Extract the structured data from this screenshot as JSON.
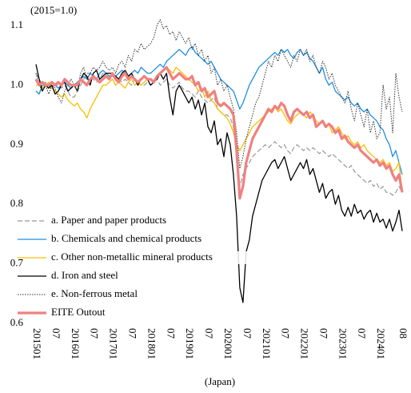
{
  "chart_data": {
    "type": "line",
    "annotations": [
      "(2015=1.0)"
    ],
    "x_label": "(Japan)",
    "categories": [
      "201501",
      null,
      null,
      null,
      null,
      null,
      "07",
      null,
      null,
      null,
      null,
      null,
      "201601",
      null,
      null,
      null,
      null,
      null,
      "07",
      null,
      null,
      null,
      null,
      null,
      "201701",
      null,
      null,
      null,
      null,
      null,
      "07",
      null,
      null,
      null,
      null,
      null,
      "201801",
      null,
      null,
      null,
      null,
      null,
      "07",
      null,
      null,
      null,
      null,
      null,
      "201901",
      null,
      null,
      null,
      null,
      null,
      "07",
      null,
      null,
      null,
      null,
      null,
      "202001",
      null,
      null,
      null,
      null,
      null,
      "07",
      null,
      null,
      null,
      null,
      null,
      "202101",
      null,
      null,
      null,
      null,
      null,
      "07",
      null,
      null,
      null,
      null,
      null,
      "202201",
      null,
      null,
      null,
      null,
      null,
      "07",
      null,
      null,
      null,
      null,
      null,
      "202301",
      null,
      null,
      null,
      null,
      null,
      "07",
      null,
      null,
      null,
      null,
      null,
      "202401",
      null,
      null,
      null,
      null,
      null,
      null,
      "08"
    ],
    "ylim": [
      0.6,
      1.1
    ],
    "yticks": [
      0.6,
      0.7,
      0.8,
      0.9,
      {
        "value": 1,
        "label": "1.0"
      },
      1.1
    ],
    "grid": false,
    "legend": "lower-left",
    "series": [
      {
        "name": "a. Paper and paper products",
        "color": "#999999",
        "line_style": "dashed",
        "linewidth": 1.2,
        "values": [
          1.02,
          1.01,
          1.0,
          1.005,
          1.0,
          0.995,
          1.0,
          1.0,
          0.995,
          1.0,
          0.99,
          0.98,
          0.98,
          0.99,
          1.0,
          1.01,
          1.02,
          1.02,
          1.01,
          1.005,
          1.01,
          1.02,
          1.02,
          1.015,
          1.015,
          1.01,
          1.01,
          1.005,
          1.01,
          1.005,
          1.0,
          1.01,
          1.005,
          1.0,
          1.0,
          1.005,
          1.0,
          1.005,
          1.01,
          1.0,
          1.005,
          1.01,
          1.0,
          0.995,
          1.0,
          1.005,
          0.995,
          0.99,
          0.99,
          0.985,
          0.98,
          0.99,
          0.98,
          0.975,
          0.97,
          0.975,
          0.98,
          0.96,
          0.955,
          0.95,
          0.95,
          0.945,
          0.93,
          0.88,
          0.83,
          0.85,
          0.86,
          0.87,
          0.88,
          0.885,
          0.89,
          0.895,
          0.9,
          0.895,
          0.9,
          0.905,
          0.9,
          0.895,
          0.9,
          0.89,
          0.885,
          0.895,
          0.9,
          0.895,
          0.89,
          0.895,
          0.89,
          0.895,
          0.89,
          0.885,
          0.89,
          0.885,
          0.88,
          0.885,
          0.88,
          0.875,
          0.87,
          0.865,
          0.86,
          0.865,
          0.855,
          0.85,
          0.845,
          0.84,
          0.835,
          0.84,
          0.83,
          0.835,
          0.825,
          0.83,
          0.82,
          0.82,
          0.815,
          0.82,
          0.83,
          0.82
        ]
      },
      {
        "name": "b. Chemicals and chemical products",
        "color": "#1f8fe0",
        "line_style": "solid",
        "linewidth": 1.3,
        "values": [
          0.99,
          0.985,
          1.0,
          1.0,
          0.995,
          1.005,
          1.0,
          0.995,
          1.0,
          1.005,
          1.0,
          0.995,
          1.0,
          1.005,
          1.01,
          1.015,
          1.01,
          1.02,
          1.015,
          1.01,
          1.02,
          1.025,
          1.02,
          1.015,
          1.02,
          1.015,
          1.02,
          1.025,
          1.02,
          1.015,
          1.02,
          1.025,
          1.02,
          1.03,
          1.025,
          1.02,
          1.02,
          1.025,
          1.03,
          1.035,
          1.03,
          1.04,
          1.045,
          1.05,
          1.055,
          1.06,
          1.055,
          1.05,
          1.06,
          1.065,
          1.055,
          1.05,
          1.045,
          1.04,
          1.035,
          1.04,
          1.03,
          1.02,
          1.01,
          1.005,
          1.0,
          0.995,
          0.99,
          0.975,
          0.96,
          0.97,
          0.985,
          1.0,
          1.01,
          1.02,
          1.03,
          1.035,
          1.04,
          1.045,
          1.05,
          1.055,
          1.05,
          1.06,
          1.055,
          1.06,
          1.05,
          1.045,
          1.055,
          1.06,
          1.05,
          1.055,
          1.045,
          1.04,
          1.03,
          1.02,
          1.03,
          1.01,
          1.0,
          1.005,
          0.99,
          0.985,
          0.98,
          0.975,
          0.98,
          0.97,
          0.965,
          0.97,
          0.96,
          0.955,
          0.96,
          0.95,
          0.945,
          0.94,
          0.93,
          0.925,
          0.91,
          0.9,
          0.88,
          0.89,
          0.87,
          0.85
        ]
      },
      {
        "name": "c. Other non-metallic mineral products",
        "color": "#f5c000",
        "line_style": "solid",
        "linewidth": 1.3,
        "values": [
          1.0,
          1.0,
          0.995,
          1.0,
          1.005,
          0.995,
          0.99,
          0.985,
          0.98,
          0.985,
          0.975,
          0.97,
          0.965,
          0.97,
          0.96,
          0.955,
          0.945,
          0.96,
          0.97,
          0.98,
          0.99,
          1.0,
          1.0,
          1.005,
          1.01,
          1.0,
          1.005,
          1.0,
          0.995,
          1.005,
          1.01,
          1.0,
          1.005,
          1.0,
          1.005,
          1.01,
          1.01,
          1.005,
          1.015,
          1.02,
          1.025,
          1.03,
          1.025,
          1.02,
          1.03,
          1.025,
          1.02,
          1.015,
          1.01,
          1.005,
          1.0,
          0.99,
          0.995,
          0.98,
          0.99,
          0.975,
          0.97,
          0.96,
          0.955,
          0.95,
          0.945,
          0.935,
          0.92,
          0.9,
          0.89,
          0.9,
          0.91,
          0.92,
          0.93,
          0.935,
          0.94,
          0.945,
          0.95,
          0.955,
          0.96,
          0.965,
          0.955,
          0.96,
          0.95,
          0.94,
          0.935,
          0.945,
          0.95,
          0.955,
          0.95,
          0.945,
          0.955,
          0.95,
          0.94,
          0.935,
          0.94,
          0.93,
          0.935,
          0.92,
          0.925,
          0.93,
          0.92,
          0.91,
          0.915,
          0.905,
          0.9,
          0.905,
          0.895,
          0.9,
          0.89,
          0.885,
          0.88,
          0.875,
          0.87,
          0.875,
          0.865,
          0.87,
          0.855,
          0.86,
          0.87,
          0.82
        ]
      },
      {
        "name": "d. Iron and steel",
        "color": "#000000",
        "line_style": "solid",
        "linewidth": 1.3,
        "values": [
          1.035,
          1.01,
          0.99,
          1.0,
          0.995,
          1.0,
          0.985,
          0.99,
          1.0,
          1.005,
          0.99,
          0.995,
          1.0,
          0.99,
          1.01,
          1.02,
          1.015,
          1.0,
          1.02,
          1.025,
          1.01,
          1.015,
          1.02,
          1.02,
          1.02,
          1.015,
          1.01,
          1.02,
          1.025,
          1.015,
          1.02,
          1.01,
          1.0,
          1.01,
          1.015,
          1.01,
          1.0,
          1.005,
          1.01,
          1.02,
          1.01,
          1.02,
          0.98,
          0.95,
          0.99,
          1.0,
          0.99,
          0.98,
          0.97,
          0.98,
          0.96,
          0.975,
          0.95,
          0.97,
          0.93,
          0.92,
          0.94,
          0.9,
          0.91,
          0.88,
          0.92,
          0.9,
          0.85,
          0.78,
          0.66,
          0.635,
          0.72,
          0.74,
          0.78,
          0.8,
          0.82,
          0.84,
          0.85,
          0.86,
          0.87,
          0.875,
          0.86,
          0.87,
          0.88,
          0.86,
          0.84,
          0.85,
          0.86,
          0.87,
          0.86,
          0.875,
          0.85,
          0.86,
          0.84,
          0.82,
          0.835,
          0.81,
          0.82,
          0.825,
          0.8,
          0.815,
          0.79,
          0.78,
          0.795,
          0.78,
          0.8,
          0.785,
          0.79,
          0.775,
          0.785,
          0.79,
          0.77,
          0.785,
          0.77,
          0.775,
          0.76,
          0.775,
          0.755,
          0.77,
          0.79,
          0.755
        ]
      },
      {
        "name": "e. Non-ferrous metal",
        "color": "#333333",
        "line_style": "dotted",
        "linewidth": 1,
        "values": [
          1.02,
          1.0,
          0.99,
          1.0,
          0.985,
          1.0,
          0.995,
          0.98,
          0.97,
          0.99,
          1.0,
          1.01,
          1.0,
          0.99,
          1.02,
          1.03,
          1.01,
          1.02,
          1.03,
          1.025,
          1.03,
          1.04,
          1.03,
          1.025,
          1.03,
          1.02,
          1.035,
          1.04,
          1.03,
          1.05,
          1.04,
          1.06,
          1.055,
          1.07,
          1.06,
          1.065,
          1.07,
          1.08,
          1.1,
          1.11,
          1.095,
          1.1,
          1.085,
          1.09,
          1.075,
          1.09,
          1.08,
          1.07,
          1.08,
          1.06,
          1.07,
          1.05,
          1.06,
          1.04,
          1.05,
          1.02,
          1.03,
          1.0,
          1.01,
          0.99,
          1.0,
          0.98,
          0.96,
          0.92,
          0.86,
          0.88,
          0.91,
          0.93,
          0.95,
          0.97,
          0.98,
          1.0,
          1.02,
          1.04,
          1.03,
          1.05,
          1.04,
          1.06,
          1.05,
          1.04,
          1.03,
          1.05,
          1.04,
          1.06,
          1.05,
          1.06,
          1.04,
          1.05,
          1.03,
          1.02,
          1.04,
          1.03,
          1.01,
          1.02,
          1.0,
          0.99,
          0.98,
          0.97,
          0.99,
          0.96,
          0.94,
          0.97,
          0.95,
          0.93,
          0.96,
          0.92,
          0.94,
          0.91,
          0.92,
          1.0,
          0.96,
          0.98,
          0.92,
          1.02,
          0.98,
          0.955
        ]
      },
      {
        "name": "EITE Outout",
        "color": "#f08080",
        "line_style": "solid",
        "linewidth": 3.2,
        "values": [
          1.01,
          1.0,
          1.005,
          1.0,
          1.0,
          1.005,
          1.0,
          1.005,
          1.0,
          1.01,
          1.005,
          1.0,
          1.0,
          1.0,
          1.01,
          1.005,
          1.0,
          1.01,
          1.015,
          1.01,
          1.005,
          1.01,
          1.015,
          1.01,
          1.02,
          1.01,
          1.005,
          1.015,
          1.02,
          1.01,
          1.015,
          1.01,
          1.005,
          1.01,
          1.015,
          1.01,
          1.01,
          1.005,
          1.015,
          1.02,
          1.025,
          1.03,
          1.02,
          1.01,
          1.015,
          1.02,
          1.015,
          1.01,
          1.01,
          1.015,
          1.0,
          1.005,
          0.99,
          0.995,
          0.98,
          0.985,
          0.99,
          0.97,
          0.965,
          0.97,
          0.965,
          0.96,
          0.95,
          0.89,
          0.81,
          0.83,
          0.87,
          0.89,
          0.91,
          0.92,
          0.93,
          0.94,
          0.95,
          0.96,
          0.955,
          0.965,
          0.96,
          0.97,
          0.965,
          0.95,
          0.94,
          0.955,
          0.96,
          0.955,
          0.95,
          0.955,
          0.945,
          0.95,
          0.93,
          0.935,
          0.94,
          0.93,
          0.935,
          0.93,
          0.92,
          0.925,
          0.91,
          0.915,
          0.905,
          0.9,
          0.895,
          0.9,
          0.89,
          0.885,
          0.88,
          0.875,
          0.87,
          0.875,
          0.865,
          0.87,
          0.86,
          0.865,
          0.85,
          0.84,
          0.85,
          0.82
        ]
      }
    ]
  }
}
